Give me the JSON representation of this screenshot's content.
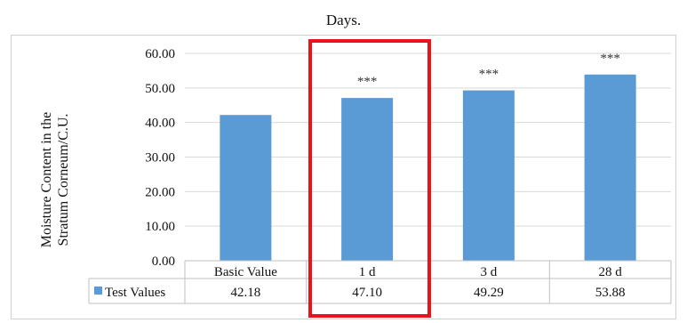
{
  "chart_data": {
    "type": "bar",
    "title_lines": [
      "",
      "Days."
    ],
    "ylabel_lines": [
      "Moisture Content in the",
      "Stratum Corneum/C.U."
    ],
    "xlabel": "",
    "categories": [
      "Basic Value",
      "1 d",
      "3 d",
      "28 d"
    ],
    "series": [
      {
        "name": "Test Values",
        "values": [
          42.18,
          47.1,
          49.29,
          53.88
        ],
        "value_labels": [
          "42.18",
          "47.10",
          "49.29",
          "53.88"
        ]
      }
    ],
    "significance": [
      "",
      "***",
      "***",
      "***"
    ],
    "ylim": [
      0,
      60
    ],
    "yticks": [
      "0.00",
      "10.00",
      "20.00",
      "30.00",
      "40.00",
      "50.00",
      "60.00"
    ],
    "grid": "horizontal",
    "legend_placement": "data-table",
    "highlighted_category": "1 d",
    "colors": {
      "bar": "#5b9bd5",
      "grid": "#d9d9d9",
      "highlight": "#e8141a"
    }
  }
}
